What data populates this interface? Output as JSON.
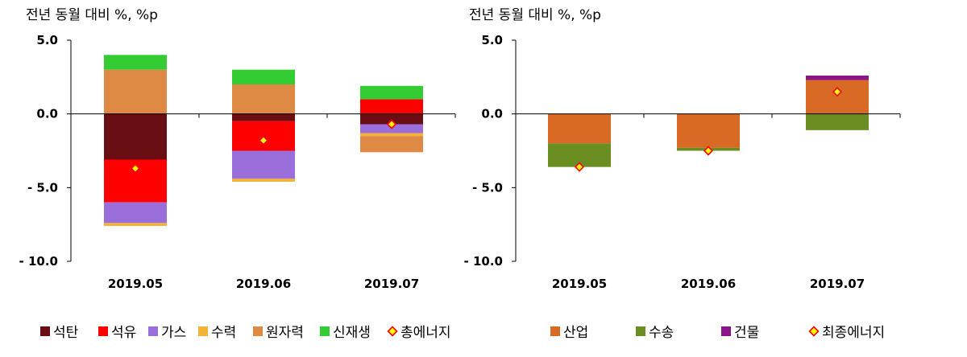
{
  "chart_data": [
    {
      "type": "bar",
      "stacked": true,
      "title": "",
      "ylabel": "전년 동월 대비 %, %p",
      "ylim": [
        -10,
        5
      ],
      "yticks": [
        5,
        0,
        -5,
        -10
      ],
      "ytick_labels": [
        "5.0",
        "0.0",
        "- 5.0",
        "- 10.0"
      ],
      "categories": [
        "2019.05",
        "2019.06",
        "2019.07"
      ],
      "legend_position": "bottom",
      "series": [
        {
          "name": "석탄",
          "color": "#6b0e14",
          "values": [
            -3.1,
            -0.5,
            -0.7
          ]
        },
        {
          "name": "석유",
          "color": "#ff0000",
          "values": [
            -2.9,
            -2.0,
            1.0
          ]
        },
        {
          "name": "가스",
          "color": "#9a6fdb",
          "values": [
            -1.4,
            -1.9,
            -0.6
          ]
        },
        {
          "name": "수력",
          "color": "#f5b335",
          "values": [
            -0.2,
            -0.2,
            -0.2
          ]
        },
        {
          "name": "원자력",
          "color": "#df8a44",
          "values": [
            3.0,
            2.0,
            -1.1
          ]
        },
        {
          "name": "신재생",
          "color": "#33cc33",
          "values": [
            1.0,
            1.0,
            0.9
          ]
        }
      ],
      "total": {
        "name": "총에너지",
        "values": [
          -3.7,
          -1.8,
          -0.7
        ]
      }
    },
    {
      "type": "bar",
      "stacked": true,
      "title": "",
      "ylabel": "전년 동월 대비 %, %p",
      "ylim": [
        -10,
        5
      ],
      "yticks": [
        5,
        0,
        -5,
        -10
      ],
      "ytick_labels": [
        "5.0",
        "0.0",
        "- 5.0",
        "- 10.0"
      ],
      "categories": [
        "2019.05",
        "2019.06",
        "2019.07"
      ],
      "legend_position": "bottom",
      "series": [
        {
          "name": "산업",
          "color": "#d86a26",
          "values": [
            -2.0,
            -2.3,
            2.3
          ]
        },
        {
          "name": "수송",
          "color": "#6b8e23",
          "values": [
            -1.6,
            -0.2,
            -1.1
          ]
        },
        {
          "name": "건물",
          "color": "#8b158b",
          "values": [
            0.0,
            0.0,
            0.3
          ]
        }
      ],
      "total": {
        "name": "최종에너지",
        "values": [
          -3.6,
          -2.5,
          1.5
        ]
      }
    }
  ]
}
